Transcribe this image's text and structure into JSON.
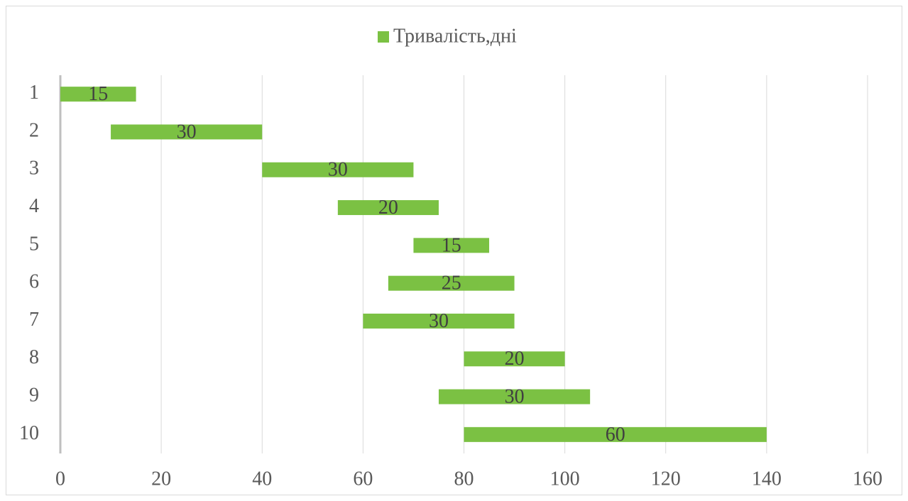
{
  "chart_data": {
    "type": "gantt",
    "categories": [
      "1",
      "2",
      "3",
      "4",
      "5",
      "6",
      "7",
      "8",
      "9",
      "10"
    ],
    "starts": [
      0,
      10,
      40,
      55,
      70,
      65,
      60,
      80,
      75,
      80
    ],
    "series": [
      {
        "name": "Тривалість,дні",
        "color": "#7bc143",
        "values": [
          15,
          30,
          30,
          20,
          15,
          25,
          30,
          20,
          30,
          60
        ]
      }
    ],
    "xlim": [
      0,
      160
    ],
    "xticks": [
      0,
      20,
      40,
      60,
      80,
      100,
      120,
      140,
      160
    ],
    "grid": true,
    "legend": "top"
  }
}
